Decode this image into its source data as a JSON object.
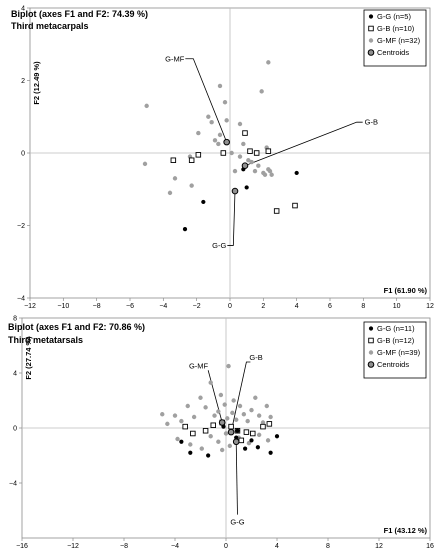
{
  "chart_data": [
    {
      "type": "scatter",
      "title": "Biplot (axes F1 and F2: 74.39 %)",
      "subtitle": "Third metacarpals",
      "xlabel": "F1 (61.90 %)",
      "ylabel": "F2 (12.49 %)",
      "xlim": [
        -12,
        12
      ],
      "ylim": [
        -4,
        4
      ],
      "xticks": [
        "−12",
        "−10",
        "−8",
        "−6",
        "−4",
        "−2",
        "0",
        "2",
        "4",
        "6",
        "8",
        "10",
        "12"
      ],
      "yticks": [
        "4",
        "2",
        "0",
        "−2",
        "−4"
      ],
      "grid": false,
      "legend_position": "top-right",
      "series": [
        {
          "name": "G-G (n=5)",
          "marker": "filled-black-circle",
          "color": "#000000",
          "x": [
            -1.6,
            -2.7,
            0.8,
            1.0,
            4.0
          ],
          "y": [
            -1.35,
            -2.1,
            -0.45,
            -0.95,
            -0.55
          ]
        },
        {
          "name": "G-B (n=10)",
          "marker": "open-square",
          "color": "#000000",
          "x": [
            -3.4,
            -2.3,
            -1.9,
            -0.4,
            0.9,
            1.2,
            1.6,
            2.3,
            2.8,
            3.9
          ],
          "y": [
            -0.2,
            -0.2,
            -0.05,
            0.0,
            0.55,
            0.05,
            0.0,
            0.05,
            -1.6,
            -1.45
          ]
        },
        {
          "name": "G-MF (n=32)",
          "marker": "grey-circle",
          "color": "#a0a0a0",
          "x": [
            -5.0,
            -5.1,
            -3.6,
            -3.3,
            -2.4,
            -2.3,
            -1.9,
            -1.3,
            -1.1,
            -0.9,
            -0.7,
            -0.6,
            -0.6,
            -0.3,
            -0.2,
            0.1,
            0.3,
            0.6,
            0.6,
            0.8,
            1.1,
            1.3,
            1.5,
            1.7,
            1.9,
            2.0,
            2.1,
            2.2,
            2.3,
            2.3,
            2.4,
            2.5
          ],
          "y": [
            1.3,
            -0.3,
            -1.1,
            -0.7,
            -0.1,
            -0.9,
            0.55,
            1.0,
            0.85,
            0.35,
            0.25,
            0.5,
            1.85,
            1.4,
            0.9,
            0.0,
            -0.5,
            0.8,
            -0.1,
            0.25,
            -0.2,
            -0.25,
            -0.5,
            -0.35,
            1.7,
            -0.55,
            -0.6,
            0.15,
            -0.45,
            2.5,
            -0.5,
            -0.6
          ]
        },
        {
          "name": "Centroids",
          "marker": "ringed-grey-circle",
          "color": "#808080",
          "x": [
            -0.2,
            0.3,
            0.9
          ],
          "y": [
            0.3,
            -1.05,
            -0.35
          ]
        }
      ],
      "vectors": [
        {
          "label": "G-MF",
          "x": -0.2,
          "y": 0.3
        },
        {
          "label": "G-B",
          "x": 7.6,
          "y": 0.85
        },
        {
          "label": "G-G",
          "x": 0.2,
          "y": -2.55
        }
      ]
    },
    {
      "type": "scatter",
      "title": "Biplot (axes F1 and F2: 70.86 %)",
      "subtitle": "Third metatarsals",
      "xlabel": "F1 (43.12 %)",
      "ylabel": "F2 (27.74 %)",
      "xlim": [
        -16,
        16
      ],
      "ylim": [
        -8,
        8
      ],
      "xticks": [
        "−16",
        "−12",
        "−8",
        "−4",
        "0",
        "4",
        "8",
        "12",
        "16"
      ],
      "yticks": [
        "8",
        "4",
        "0",
        "−4"
      ],
      "grid": false,
      "legend_position": "top-right",
      "series": [
        {
          "name": "G-G (n=11)",
          "marker": "filled-black-circle",
          "color": "#000000",
          "x": [
            -3.5,
            -2.8,
            -1.4,
            0.8,
            1.5,
            2.5,
            3.5,
            4.0,
            -0.2,
            0.9,
            2.0
          ],
          "y": [
            -1.0,
            -1.8,
            -2.0,
            -0.7,
            -1.5,
            -1.4,
            -1.8,
            -0.6,
            0.1,
            -0.2,
            -0.9
          ]
        },
        {
          "name": "G-B (n=12)",
          "marker": "open-square",
          "color": "#000000",
          "x": [
            -3.2,
            -2.6,
            -1.6,
            -1.0,
            -0.3,
            0.4,
            0.9,
            1.2,
            1.6,
            2.1,
            2.9,
            3.4
          ],
          "y": [
            0.1,
            -0.4,
            -0.2,
            0.2,
            0.4,
            0.1,
            -0.2,
            -0.9,
            -0.3,
            -0.4,
            0.1,
            0.3
          ]
        },
        {
          "name": "G-MF (n=39)",
          "marker": "grey-circle",
          "color": "#a0a0a0",
          "x": [
            -5.0,
            -4.6,
            -4.0,
            -3.5,
            -3.0,
            -2.5,
            -2.0,
            -1.6,
            -1.2,
            -0.9,
            -0.6,
            -0.4,
            -0.1,
            0.2,
            0.5,
            0.8,
            1.1,
            1.4,
            1.7,
            2.0,
            2.3,
            2.6,
            2.9,
            3.2,
            3.5,
            -3.8,
            -2.8,
            -1.9,
            -1.2,
            -0.6,
            0.3,
            1.0,
            1.8,
            2.6,
            3.3,
            0.0,
            0.1,
            -0.3,
            0.6
          ],
          "y": [
            1.0,
            0.3,
            0.9,
            0.5,
            1.6,
            0.8,
            2.2,
            1.5,
            3.3,
            0.9,
            1.2,
            2.4,
            1.7,
            4.5,
            1.1,
            0.6,
            1.6,
            1.0,
            0.5,
            1.3,
            2.2,
            0.9,
            0.4,
            1.6,
            0.8,
            -0.8,
            -1.2,
            -1.5,
            -0.6,
            -1.0,
            -1.3,
            -0.7,
            -1.1,
            -0.5,
            -0.9,
            -0.4,
            0.7,
            -1.6,
            2.0
          ]
        },
        {
          "name": "Centroids",
          "marker": "ringed-grey-circle",
          "color": "#808080",
          "x": [
            -0.3,
            0.4,
            0.8
          ],
          "y": [
            0.4,
            -0.3,
            -1.0
          ]
        }
      ],
      "vectors": [
        {
          "label": "G-MF",
          "x": -0.3,
          "y": 0.4
        },
        {
          "label": "G-B",
          "x": 1.6,
          "y": 4.8
        },
        {
          "label": "G-G",
          "x": 0.9,
          "y": -6.3
        }
      ]
    }
  ]
}
